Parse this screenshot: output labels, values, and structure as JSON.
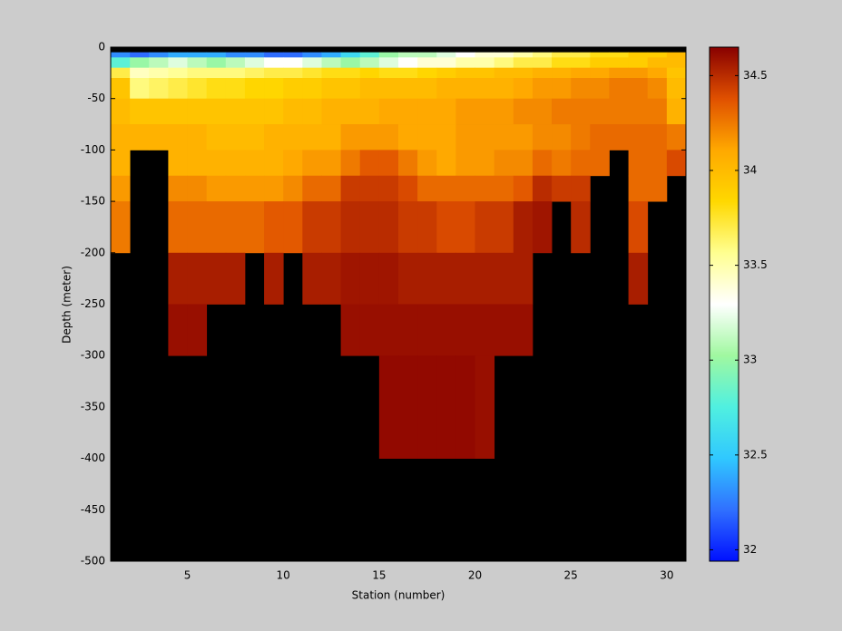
{
  "chart_data": {
    "type": "heatmap",
    "xlabel": "Station (number)",
    "ylabel": "Depth (meter)",
    "xlim": [
      1,
      31
    ],
    "xticks": [
      5,
      10,
      15,
      20,
      25,
      30
    ],
    "ylim": [
      -500,
      0
    ],
    "yticks": [
      0,
      -50,
      -100,
      -150,
      -200,
      -250,
      -300,
      -350,
      -400,
      -450,
      -500
    ],
    "y_edges": [
      0,
      -5,
      -10,
      -20,
      -30,
      -50,
      -75,
      -100,
      -125,
      -150,
      -200,
      -250,
      -300,
      -400,
      -500
    ],
    "x_edges": [
      1,
      2,
      3,
      4,
      5,
      6,
      7,
      8,
      9,
      10,
      11,
      12,
      13,
      14,
      15,
      16,
      17,
      18,
      19,
      20,
      21,
      22,
      23,
      24,
      25,
      26,
      27,
      28,
      29,
      30,
      31
    ],
    "values": [
      [
        null,
        null,
        null,
        null,
        null,
        null,
        null,
        null,
        null,
        null,
        null,
        null,
        null,
        null,
        null,
        null,
        null,
        null,
        null,
        null,
        null,
        null,
        null,
        null,
        null,
        null,
        null,
        null,
        null,
        null
      ],
      [
        32.3,
        32.2,
        32.3,
        32.4,
        32.4,
        32.4,
        32.3,
        32.3,
        32.2,
        32.2,
        32.3,
        32.4,
        32.6,
        32.8,
        33.0,
        33.1,
        33.1,
        33.2,
        33.3,
        33.4,
        33.4,
        33.5,
        33.6,
        33.7,
        33.7,
        33.8,
        33.8,
        33.9,
        33.9,
        34.0
      ],
      [
        32.8,
        33.0,
        33.1,
        33.2,
        33.1,
        33.0,
        33.1,
        33.2,
        33.3,
        33.3,
        33.2,
        33.1,
        33.0,
        33.1,
        33.2,
        33.3,
        33.4,
        33.4,
        33.5,
        33.5,
        33.6,
        33.7,
        33.7,
        33.8,
        33.8,
        33.9,
        33.9,
        33.9,
        34.0,
        34.0
      ],
      [
        33.7,
        33.45,
        33.5,
        33.55,
        33.6,
        33.6,
        33.6,
        33.65,
        33.7,
        33.7,
        33.75,
        33.8,
        33.8,
        33.85,
        33.8,
        33.8,
        33.85,
        33.9,
        33.95,
        33.95,
        34.0,
        34.0,
        34.05,
        34.05,
        34.1,
        34.1,
        34.15,
        34.15,
        34.1,
        33.95
      ],
      [
        33.95,
        33.6,
        33.65,
        33.7,
        33.75,
        33.8,
        33.8,
        33.85,
        33.85,
        33.9,
        33.9,
        33.95,
        33.95,
        34.0,
        34.0,
        34.0,
        34.0,
        34.05,
        34.05,
        34.05,
        34.05,
        34.1,
        34.15,
        34.15,
        34.2,
        34.2,
        34.25,
        34.25,
        34.2,
        34.0
      ],
      [
        34.0,
        33.95,
        33.95,
        33.95,
        33.95,
        33.95,
        33.95,
        33.95,
        33.95,
        34.0,
        34.0,
        34.05,
        34.05,
        34.05,
        34.1,
        34.1,
        34.1,
        34.1,
        34.15,
        34.15,
        34.15,
        34.2,
        34.2,
        34.25,
        34.25,
        34.25,
        34.25,
        34.25,
        34.25,
        34.05
      ],
      [
        34.05,
        34.05,
        34.05,
        34.05,
        34.05,
        34.0,
        34.0,
        34.0,
        34.05,
        34.05,
        34.05,
        34.05,
        34.15,
        34.15,
        34.15,
        34.1,
        34.1,
        34.1,
        34.15,
        34.15,
        34.15,
        34.15,
        34.2,
        34.2,
        34.25,
        34.3,
        34.3,
        34.3,
        34.3,
        34.25
      ],
      [
        34.05,
        null,
        null,
        34.05,
        34.05,
        34.05,
        34.05,
        34.05,
        34.05,
        34.1,
        34.15,
        34.15,
        34.25,
        34.35,
        34.35,
        34.25,
        34.15,
        34.1,
        34.15,
        34.15,
        34.2,
        34.2,
        34.3,
        34.25,
        34.3,
        34.3,
        null,
        34.3,
        34.3,
        34.4
      ],
      [
        34.15,
        null,
        null,
        34.2,
        34.2,
        34.15,
        34.15,
        34.15,
        34.15,
        34.2,
        34.3,
        34.3,
        34.45,
        34.45,
        34.45,
        34.4,
        34.3,
        34.3,
        34.3,
        34.3,
        34.3,
        34.35,
        34.5,
        34.45,
        34.45,
        null,
        null,
        34.3,
        34.3,
        null
      ],
      [
        34.25,
        null,
        null,
        34.3,
        34.3,
        34.3,
        34.3,
        34.3,
        34.35,
        34.35,
        34.45,
        34.45,
        34.5,
        34.5,
        34.5,
        34.45,
        34.45,
        34.4,
        34.4,
        34.45,
        34.45,
        34.55,
        34.58,
        null,
        34.5,
        null,
        null,
        34.4,
        null,
        null
      ],
      [
        null,
        null,
        null,
        34.55,
        34.55,
        34.55,
        34.55,
        null,
        34.55,
        null,
        34.55,
        34.55,
        34.58,
        34.58,
        34.58,
        34.55,
        34.55,
        34.55,
        34.55,
        34.55,
        34.55,
        34.55,
        null,
        null,
        null,
        null,
        null,
        34.55,
        null,
        null
      ],
      [
        null,
        null,
        null,
        34.6,
        34.6,
        null,
        null,
        null,
        null,
        null,
        null,
        null,
        34.6,
        34.6,
        34.6,
        34.6,
        34.6,
        34.6,
        34.6,
        34.6,
        34.6,
        34.6,
        null,
        null,
        null,
        null,
        null,
        null,
        null,
        null
      ],
      [
        null,
        null,
        null,
        null,
        null,
        null,
        null,
        null,
        null,
        null,
        null,
        null,
        null,
        null,
        34.62,
        34.62,
        34.62,
        34.62,
        34.62,
        34.6,
        null,
        null,
        null,
        null,
        null,
        null,
        null,
        null,
        null,
        null
      ],
      [
        null,
        null,
        null,
        null,
        null,
        null,
        null,
        null,
        null,
        null,
        null,
        null,
        null,
        null,
        null,
        null,
        null,
        null,
        null,
        null,
        null,
        null,
        null,
        null,
        null,
        null,
        null,
        null,
        null,
        null
      ]
    ],
    "nan_color": "#000000",
    "clim": [
      31.94,
      34.65
    ],
    "cticks": [
      32,
      32.5,
      33,
      33.5,
      34,
      34.5
    ],
    "colormap": [
      "#0010ff",
      "#3070ff",
      "#30c8ff",
      "#50f0e0",
      "#a0f8a0",
      "#ffffff",
      "#ffff90",
      "#ffd800",
      "#ffa800",
      "#e05000",
      "#880000"
    ]
  }
}
